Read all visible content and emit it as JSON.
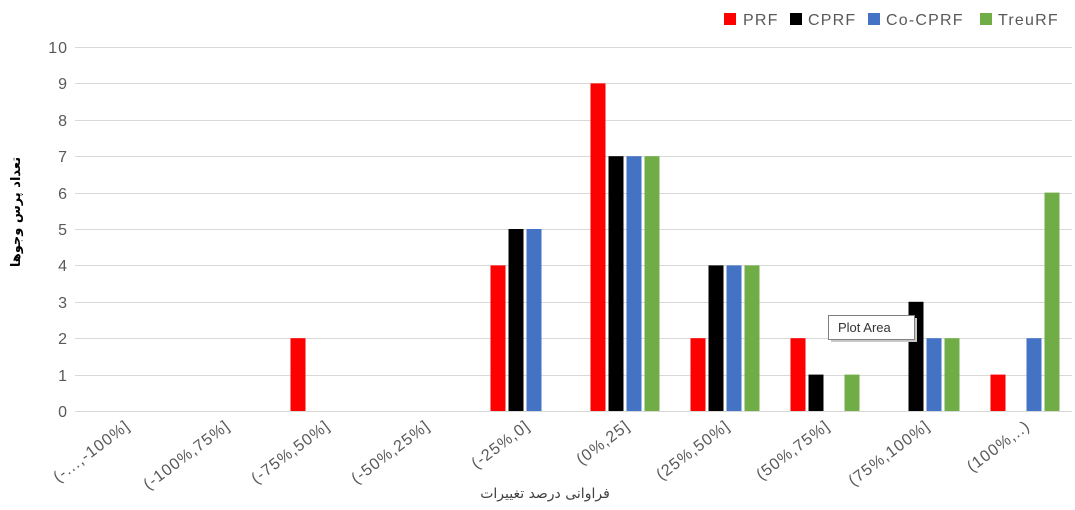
{
  "chart_data": {
    "type": "bar",
    "categories": [
      "(-...,-100%]",
      "(-100%,75%]",
      "(-75%,50%]",
      "(-50%,25%]",
      "(-25%,0]",
      "(0%,25]",
      "(25%,50%]",
      "(50%,75%]",
      "(75%,100%]",
      "(100%,..)"
    ],
    "series": [
      {
        "name": "PRF",
        "color": "#ff0000",
        "values": [
          0,
          0,
          2,
          0,
          4,
          9,
          2,
          2,
          0,
          1
        ]
      },
      {
        "name": "CPRF",
        "color": "#000000",
        "values": [
          0,
          0,
          0,
          0,
          5,
          7,
          4,
          1,
          3,
          0
        ]
      },
      {
        "name": "Co-CPRF",
        "color": "#4472c4",
        "values": [
          0,
          0,
          0,
          0,
          5,
          7,
          4,
          0,
          2,
          2
        ]
      },
      {
        "name": "TreuRF",
        "color": "#70ad47",
        "values": [
          0,
          0,
          0,
          0,
          0,
          7,
          4,
          1,
          2,
          6
        ]
      }
    ],
    "xlabel": "فراوانی درصد تغییرات",
    "ylabel": "تعداد پرس وجوها",
    "ylim": [
      0,
      10
    ],
    "yticks": [
      0,
      1,
      2,
      3,
      4,
      5,
      6,
      7,
      8,
      9,
      10
    ],
    "grid": true,
    "legend": "top-right"
  },
  "tooltip": {
    "text": "Plot Area"
  }
}
